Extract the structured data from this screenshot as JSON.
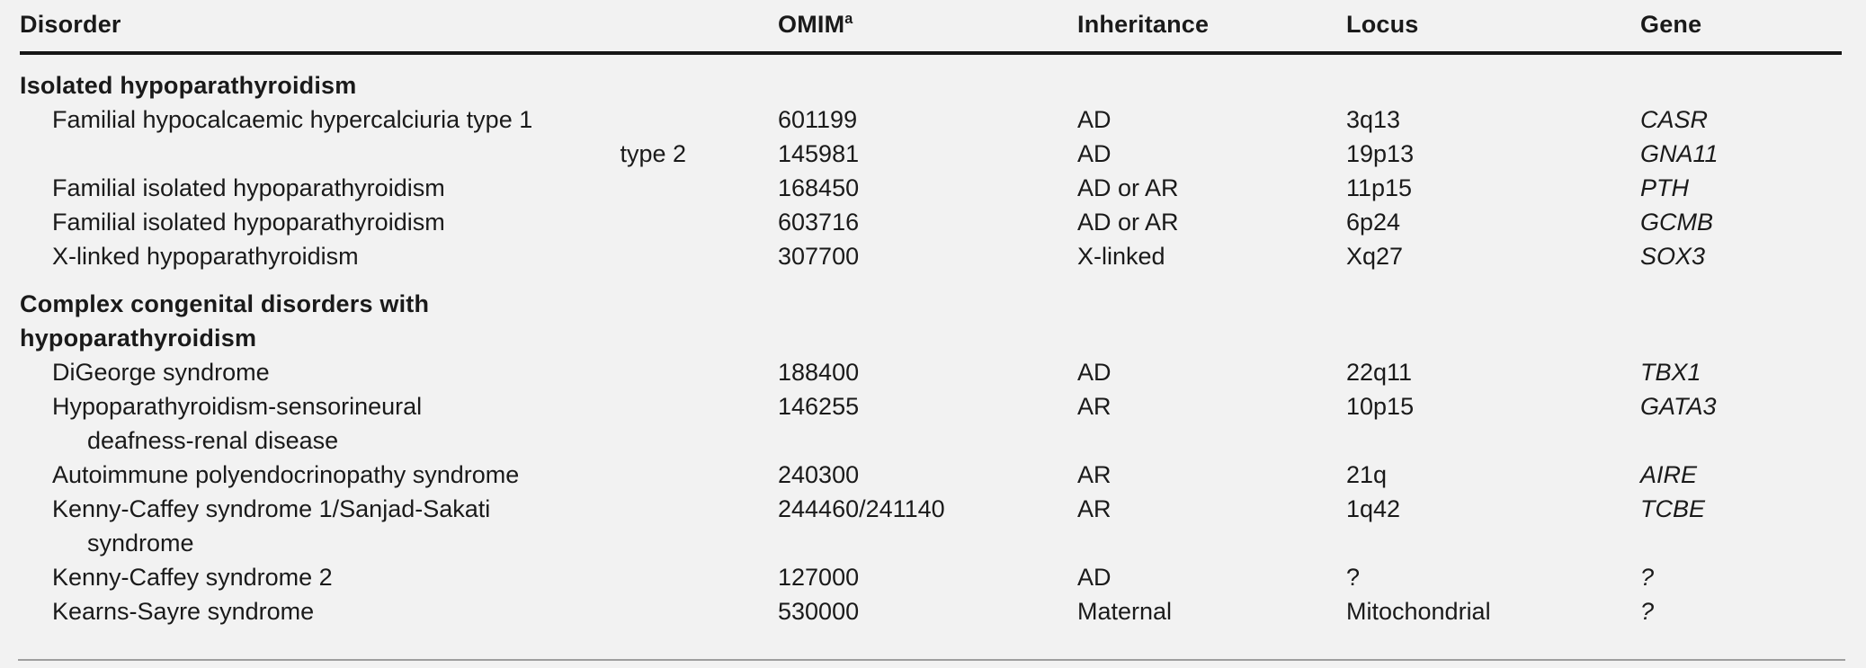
{
  "page": {
    "background_color": "#f2f2f2",
    "text_color": "#1a1a1a",
    "header_rule_color": "#161616",
    "bottom_rule_color": "#9f9f9f"
  },
  "table": {
    "columns": [
      {
        "key": "disorder",
        "label": "Disorder"
      },
      {
        "key": "omim",
        "label": "OMIM",
        "superscript": "a"
      },
      {
        "key": "inheritance",
        "label": "Inheritance"
      },
      {
        "key": "locus",
        "label": "Locus"
      },
      {
        "key": "gene",
        "label": "Gene"
      }
    ],
    "sections": [
      {
        "title_lines": [
          "Isolated hypoparathyroidism"
        ],
        "rows": [
          {
            "disorder": "Familial hypocalcaemic hypercalciuria type 1",
            "omim": "601199",
            "inheritance": "AD",
            "locus": "3q13",
            "gene": "CASR"
          },
          {
            "disorder": "type 2",
            "disorder_align": "right",
            "omim": "145981",
            "inheritance": "AD",
            "locus": "19p13",
            "gene": "GNA11"
          },
          {
            "disorder": "Familial isolated hypoparathyroidism",
            "omim": "168450",
            "inheritance": "AD or AR",
            "locus": "11p15",
            "gene": "PTH"
          },
          {
            "disorder": "Familial isolated hypoparathyroidism",
            "omim": "603716",
            "inheritance": "AD or AR",
            "locus": "6p24",
            "gene": "GCMB"
          },
          {
            "disorder": "X-linked hypoparathyroidism",
            "omim": "307700",
            "inheritance": "X-linked",
            "locus": "Xq27",
            "gene": "SOX3"
          }
        ]
      },
      {
        "title_lines": [
          "Complex congenital disorders with",
          "hypoparathyroidism"
        ],
        "rows": [
          {
            "disorder": "DiGeorge syndrome",
            "omim": "188400",
            "inheritance": "AD",
            "locus": "22q11",
            "gene": "TBX1"
          },
          {
            "disorder": "Hypoparathyroidism-sensorineural",
            "disorder_line2": "deafness-renal disease",
            "omim": "146255",
            "inheritance": "AR",
            "locus": "10p15",
            "gene": "GATA3"
          },
          {
            "disorder": "Autoimmune polyendocrinopathy syndrome",
            "omim": "240300",
            "inheritance": "AR",
            "locus": "21q",
            "gene": "AIRE"
          },
          {
            "disorder": "Kenny-Caffey syndrome 1/Sanjad-Sakati",
            "disorder_line2": "syndrome",
            "omim": "244460/241140",
            "inheritance": "AR",
            "locus": "1q42",
            "gene": "TCBE"
          },
          {
            "disorder": "Kenny-Caffey syndrome 2",
            "omim": "127000",
            "inheritance": "AD",
            "locus": "?",
            "gene": "?"
          },
          {
            "disorder": "Kearns-Sayre syndrome",
            "omim": "530000",
            "inheritance": "Maternal",
            "locus": "Mitochondrial",
            "gene": "?"
          }
        ]
      }
    ]
  }
}
